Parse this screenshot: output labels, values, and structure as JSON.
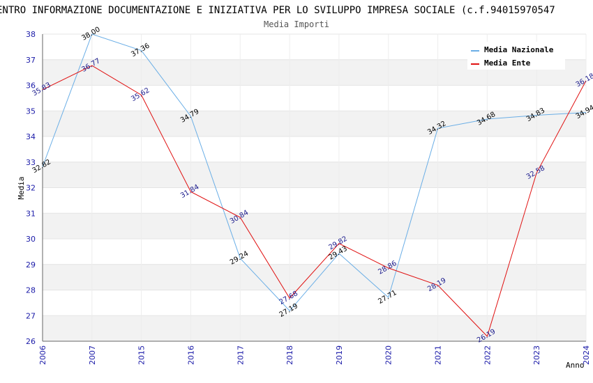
{
  "chart_data": {
    "type": "line",
    "title": "ENTRO INFORMAZIONE DOCUMENTAZIONE E INIZIATIVA PER LO SVILUPPO IMPRESA SOCIALE (c.f.94015970547",
    "subtitle": "Media Importi",
    "xlabel": "Anno",
    "ylabel": "Media",
    "ylim": [
      26,
      38
    ],
    "yticks": [
      26,
      27,
      28,
      29,
      30,
      31,
      32,
      33,
      34,
      35,
      36,
      37,
      38
    ],
    "categories": [
      "2006",
      "2007",
      "2015",
      "2016",
      "2017",
      "2018",
      "2019",
      "2020",
      "2021",
      "2022",
      "2023",
      "2024"
    ],
    "grid": "horizontal bands",
    "legend_position": "top-right",
    "series": [
      {
        "name": "Media Nazionale",
        "color": "#6aaee6",
        "values": [
          32.82,
          38.0,
          37.36,
          34.79,
          29.24,
          27.19,
          29.43,
          27.71,
          34.32,
          34.68,
          34.83,
          34.94
        ],
        "labels": [
          "32.82",
          "38.00",
          "37.36",
          "34.79",
          "29.24",
          "27.19",
          "29.43",
          "27.71",
          "34.32",
          "34.68",
          "34.83",
          "34.94"
        ]
      },
      {
        "name": "Media Ente",
        "color": "#e01010",
        "values": [
          35.83,
          36.77,
          35.62,
          31.84,
          30.84,
          27.68,
          29.82,
          28.86,
          28.19,
          26.19,
          32.58,
          36.18
        ],
        "labels": [
          "35.83",
          "36.77",
          "35.62",
          "31.84",
          "30.84",
          "27.68",
          "29.82",
          "28.86",
          "28.19",
          "26.19",
          "32.58",
          "36.18"
        ]
      }
    ]
  }
}
